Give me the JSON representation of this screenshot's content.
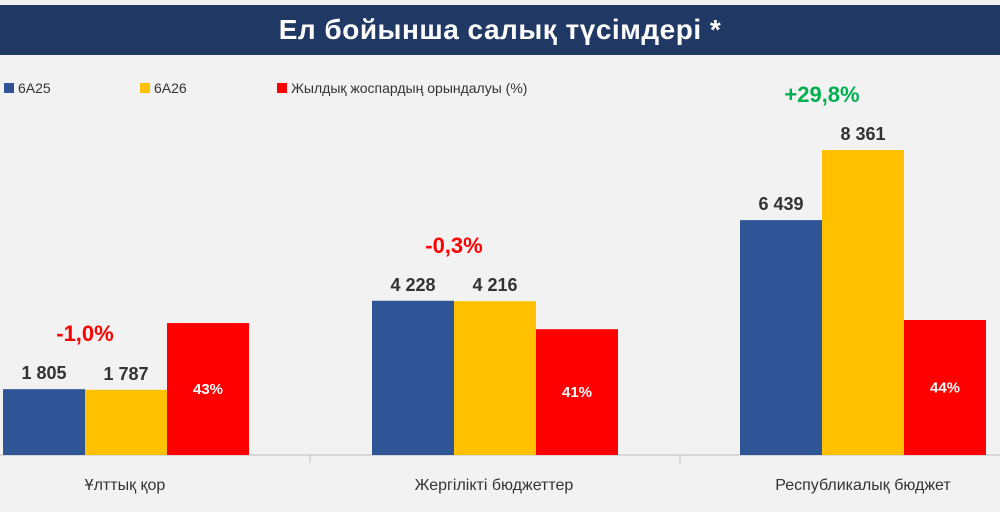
{
  "title": "Ел бойынша салық түсімдері *",
  "legend": [
    {
      "label": "6А25",
      "color": "#2f5597"
    },
    {
      "label": "6А26",
      "color": "#ffc000"
    },
    {
      "label": "Жылдық жоспардың орындалуы  (%)",
      "color": "#ff0000"
    }
  ],
  "colors": {
    "growth_positive": "#00b050",
    "growth_negative": "#ff0000",
    "percent_label": "#ffffff"
  },
  "chart_data": {
    "type": "bar",
    "categories": [
      "Ұлттық қор",
      "Жергілікті бюджеттер",
      "Республикалық бюджет"
    ],
    "series": [
      {
        "name": "6А25",
        "values": [
          1805,
          4228,
          6439
        ],
        "labels": [
          "1 805",
          "4 228",
          "6 439"
        ]
      },
      {
        "name": "6А26",
        "values": [
          1787,
          4216,
          8361
        ],
        "labels": [
          "1 787",
          "4 216",
          "8 361"
        ]
      },
      {
        "name": "Жылдық жоспардың орындалуы  (%)",
        "values": [
          43,
          41,
          44
        ],
        "labels": [
          "43%",
          "41%",
          "44%"
        ]
      }
    ],
    "growth_labels": [
      "-1,0%",
      "-0,3%",
      "+29,8%"
    ],
    "title": "Ел бойынша салық түсімдері *"
  }
}
